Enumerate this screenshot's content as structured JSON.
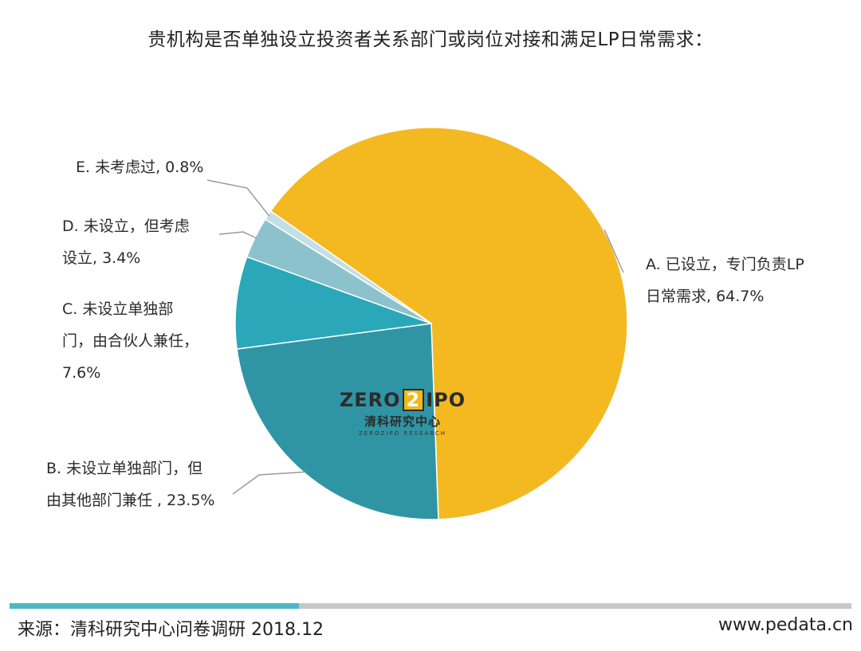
{
  "title": "贵机构是否单独设立投资者关系部门或岗位对接和满足LP日常需求：",
  "chart_data": {
    "type": "pie",
    "start_angle_deg": -55,
    "direction": "clockwise",
    "slices": [
      {
        "label_lines": [
          "A. 已设立，专门负责LP",
          "日常需求, 64.7%"
        ],
        "value": 64.7,
        "color": "#f4b921"
      },
      {
        "label_lines": [
          "B. 未设立单独部门，但",
          "由其他部门兼任 , 23.5%"
        ],
        "value": 23.5,
        "color": "#2f95a5"
      },
      {
        "label_lines": [
          "C. 未设立单独部",
          "门，由合伙人兼任，",
          "7.6%"
        ],
        "value": 7.6,
        "color": "#2aa8b9"
      },
      {
        "label_lines": [
          "D. 未设立，但考虑",
          "设立, 3.4%"
        ],
        "value": 3.4,
        "color": "#8cc2cb"
      },
      {
        "label_lines": [
          "E. 未考虑过, 0.8%"
        ],
        "value": 0.8,
        "color": "#c4dfe5"
      }
    ]
  },
  "logo": {
    "main_left": "ZERO",
    "main_mid": "2",
    "main_right": "IPO",
    "cn": "清科研究中心",
    "en": "ZEROZIPO RESEARCH"
  },
  "footer": {
    "source": "来源：清科研究中心问卷调研 2018.12",
    "site": "www.pedata.cn"
  }
}
